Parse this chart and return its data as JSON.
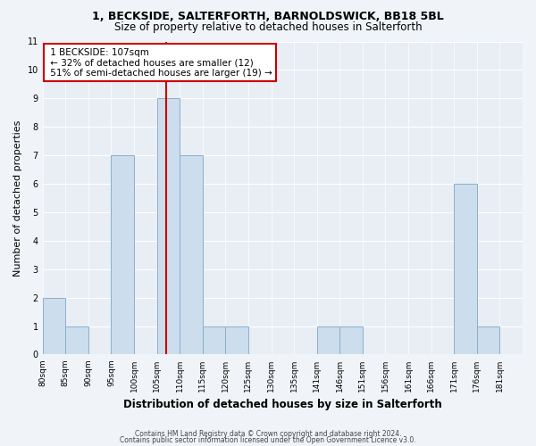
{
  "title": "1, BECKSIDE, SALTERFORTH, BARNOLDSWICK, BB18 5BL",
  "subtitle": "Size of property relative to detached houses in Salterforth",
  "xlabel": "Distribution of detached houses by size in Salterforth",
  "ylabel": "Number of detached properties",
  "bar_color": "#ccdded",
  "bar_edge_color": "#8ab0cc",
  "bar_heights": [
    2,
    1,
    0,
    7,
    0,
    9,
    7,
    1,
    1,
    0,
    0,
    0,
    1,
    1,
    0,
    0,
    0,
    0,
    6,
    1,
    0
  ],
  "tick_labels": [
    "80sqm",
    "85sqm",
    "90sqm",
    "95sqm",
    "100sqm",
    "105sqm",
    "110sqm",
    "115sqm",
    "120sqm",
    "125sqm",
    "130sqm",
    "135sqm",
    "141sqm",
    "146sqm",
    "151sqm",
    "156sqm",
    "161sqm",
    "166sqm",
    "171sqm",
    "176sqm",
    "181sqm"
  ],
  "ylim": [
    0,
    11
  ],
  "yticks": [
    0,
    1,
    2,
    3,
    4,
    5,
    6,
    7,
    8,
    9,
    10,
    11
  ],
  "property_bar_index": 5,
  "annotation_title": "1 BECKSIDE: 107sqm",
  "annotation_line1": "← 32% of detached houses are smaller (12)",
  "annotation_line2": "51% of semi-detached houses are larger (19) →",
  "annotation_box_color": "#ffffff",
  "annotation_box_edge": "#cc0000",
  "property_line_color": "#cc0000",
  "footer_line1": "Contains HM Land Registry data © Crown copyright and database right 2024.",
  "footer_line2": "Contains public sector information licensed under the Open Government Licence v3.0.",
  "background_color": "#f0f4f8",
  "plot_bg_color": "#e8eef4",
  "title_fontsize": 9,
  "subtitle_fontsize": 8.5,
  "ylabel_fontsize": 8,
  "xlabel_fontsize": 8.5,
  "tick_fontsize": 6.5,
  "annotation_fontsize": 7.5,
  "footer_fontsize": 5.5
}
